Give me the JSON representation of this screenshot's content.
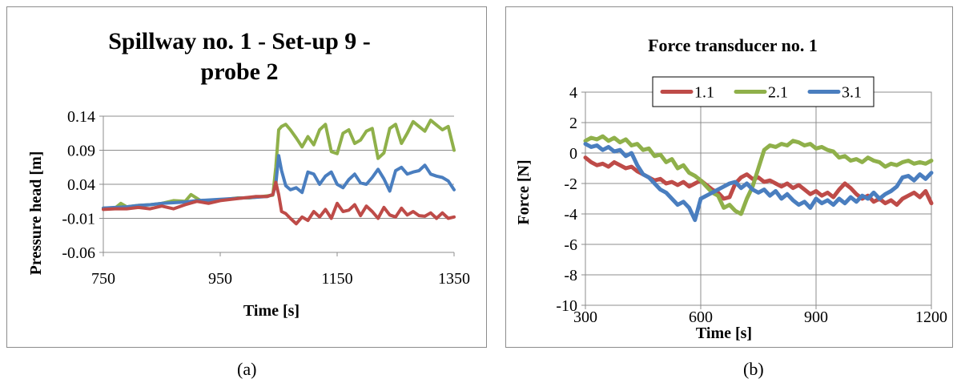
{
  "figure": {
    "caption_a": "(a)",
    "caption_b": "(b)"
  },
  "chart_data": [
    {
      "type": "line",
      "title_line1": "Spillway no. 1 - Set-up 9 -",
      "title_line2": "probe 2",
      "xlabel": "Time [s]",
      "ylabel": "Pressure head [m]",
      "xlim": [
        750,
        1350
      ],
      "ylim": [
        -0.06,
        0.14
      ],
      "xticks": [
        750,
        950,
        1150,
        1350
      ],
      "yticks": [
        -0.06,
        -0.01,
        0.04,
        0.09,
        0.14
      ],
      "ytick_labels": [
        "-0.06",
        "-0.01",
        "0.04",
        "0.09",
        "0.14"
      ],
      "xgrid": false,
      "ygrid": true,
      "series": [
        {
          "color": "#8fb04a",
          "x": [
            750,
            770,
            780,
            790,
            810,
            830,
            850,
            870,
            890,
            900,
            920,
            940,
            960,
            980,
            1000,
            1020,
            1040,
            1045,
            1050,
            1055,
            1062,
            1070,
            1080,
            1090,
            1100,
            1110,
            1120,
            1130,
            1140,
            1150,
            1160,
            1170,
            1180,
            1190,
            1200,
            1210,
            1220,
            1230,
            1240,
            1250,
            1260,
            1270,
            1280,
            1290,
            1300,
            1310,
            1320,
            1330,
            1340,
            1350
          ],
          "y": [
            0.005,
            0.005,
            0.012,
            0.007,
            0.009,
            0.01,
            0.012,
            0.016,
            0.015,
            0.025,
            0.014,
            0.017,
            0.018,
            0.02,
            0.02,
            0.022,
            0.024,
            0.065,
            0.12,
            0.125,
            0.128,
            0.12,
            0.108,
            0.095,
            0.11,
            0.098,
            0.12,
            0.128,
            0.088,
            0.085,
            0.115,
            0.12,
            0.1,
            0.105,
            0.118,
            0.122,
            0.078,
            0.086,
            0.122,
            0.128,
            0.1,
            0.115,
            0.132,
            0.125,
            0.118,
            0.134,
            0.127,
            0.12,
            0.125,
            0.09
          ]
        },
        {
          "color": "#4a7ebf",
          "x": [
            750,
            770,
            790,
            810,
            830,
            850,
            870,
            890,
            910,
            930,
            950,
            970,
            990,
            1010,
            1030,
            1040,
            1045,
            1050,
            1055,
            1062,
            1070,
            1080,
            1090,
            1100,
            1110,
            1120,
            1130,
            1140,
            1150,
            1160,
            1170,
            1180,
            1190,
            1200,
            1210,
            1220,
            1230,
            1240,
            1250,
            1260,
            1270,
            1280,
            1290,
            1300,
            1310,
            1320,
            1330,
            1340,
            1350
          ],
          "y": [
            0.005,
            0.006,
            0.007,
            0.009,
            0.01,
            0.012,
            0.013,
            0.014,
            0.016,
            0.017,
            0.018,
            0.019,
            0.02,
            0.021,
            0.022,
            0.025,
            0.04,
            0.082,
            0.06,
            0.038,
            0.032,
            0.035,
            0.028,
            0.058,
            0.055,
            0.04,
            0.052,
            0.058,
            0.04,
            0.035,
            0.047,
            0.055,
            0.042,
            0.04,
            0.05,
            0.062,
            0.048,
            0.03,
            0.06,
            0.065,
            0.055,
            0.058,
            0.06,
            0.068,
            0.055,
            0.052,
            0.05,
            0.045,
            0.032
          ]
        },
        {
          "color": "#be4b48",
          "x": [
            750,
            770,
            790,
            810,
            830,
            850,
            870,
            890,
            910,
            930,
            950,
            970,
            990,
            1010,
            1030,
            1040,
            1045,
            1050,
            1055,
            1062,
            1070,
            1080,
            1090,
            1100,
            1110,
            1120,
            1130,
            1140,
            1150,
            1160,
            1170,
            1180,
            1190,
            1200,
            1210,
            1220,
            1230,
            1240,
            1250,
            1260,
            1270,
            1280,
            1290,
            1300,
            1310,
            1320,
            1330,
            1340,
            1350
          ],
          "y": [
            0.003,
            0.004,
            0.004,
            0.006,
            0.004,
            0.008,
            0.004,
            0.01,
            0.015,
            0.012,
            0.016,
            0.018,
            0.02,
            0.022,
            0.022,
            0.025,
            0.043,
            0.025,
            0.0,
            -0.003,
            -0.01,
            -0.018,
            -0.008,
            -0.013,
            0.0,
            -0.008,
            0.003,
            -0.01,
            0.012,
            0.0,
            0.002,
            0.01,
            -0.006,
            0.008,
            0.0,
            -0.01,
            0.006,
            -0.005,
            -0.008,
            0.005,
            -0.005,
            0.0,
            -0.006,
            -0.007,
            -0.002,
            -0.01,
            -0.002,
            -0.01,
            -0.008
          ]
        }
      ]
    },
    {
      "type": "line",
      "title": "Force transducer no. 1",
      "xlabel": "Time [s]",
      "ylabel": "Force [N]",
      "xlim": [
        300,
        1200
      ],
      "ylim": [
        -10,
        4
      ],
      "xticks": [
        300,
        600,
        900,
        1200
      ],
      "yticks": [
        -10,
        -8,
        -6,
        -4,
        -2,
        0,
        2,
        4
      ],
      "xgrid": true,
      "ygrid": true,
      "legend_position": "top-right",
      "series": [
        {
          "name": "1.1",
          "color": "#be4b48",
          "x": [
            300,
            315,
            330,
            345,
            360,
            375,
            390,
            405,
            420,
            435,
            450,
            465,
            480,
            495,
            510,
            525,
            540,
            555,
            570,
            585,
            600,
            615,
            630,
            645,
            660,
            675,
            690,
            705,
            720,
            735,
            750,
            765,
            780,
            795,
            810,
            825,
            840,
            855,
            870,
            885,
            900,
            915,
            930,
            945,
            960,
            975,
            990,
            1005,
            1020,
            1035,
            1050,
            1065,
            1080,
            1095,
            1110,
            1125,
            1140,
            1155,
            1170,
            1185,
            1200
          ],
          "y": [
            -0.3,
            -0.6,
            -0.8,
            -0.7,
            -0.9,
            -0.6,
            -0.8,
            -1.0,
            -0.9,
            -1.2,
            -1.4,
            -1.6,
            -1.8,
            -1.7,
            -2.0,
            -1.9,
            -2.1,
            -1.9,
            -2.2,
            -2.0,
            -1.8,
            -2.1,
            -2.4,
            -2.6,
            -3.0,
            -2.9,
            -2.0,
            -1.6,
            -1.4,
            -1.7,
            -1.6,
            -1.9,
            -1.8,
            -2.0,
            -2.2,
            -2.0,
            -2.3,
            -2.1,
            -2.4,
            -2.7,
            -2.5,
            -2.8,
            -2.6,
            -2.9,
            -2.4,
            -2.0,
            -2.3,
            -2.7,
            -3.0,
            -2.8,
            -3.2,
            -3.0,
            -3.3,
            -3.1,
            -3.4,
            -3.0,
            -2.8,
            -2.6,
            -2.9,
            -2.5,
            -3.3
          ]
        },
        {
          "name": "2.1",
          "color": "#8fb04a",
          "x": [
            300,
            315,
            330,
            345,
            360,
            375,
            390,
            405,
            420,
            435,
            450,
            465,
            480,
            495,
            510,
            525,
            540,
            555,
            570,
            585,
            600,
            615,
            630,
            645,
            660,
            675,
            690,
            705,
            720,
            735,
            750,
            765,
            780,
            795,
            810,
            825,
            840,
            855,
            870,
            885,
            900,
            915,
            930,
            945,
            960,
            975,
            990,
            1005,
            1020,
            1035,
            1050,
            1065,
            1080,
            1095,
            1110,
            1125,
            1140,
            1155,
            1170,
            1185,
            1200
          ],
          "y": [
            0.8,
            1.0,
            0.9,
            1.1,
            0.8,
            1.0,
            0.7,
            0.9,
            0.5,
            0.6,
            0.2,
            0.3,
            -0.2,
            -0.1,
            -0.6,
            -0.4,
            -1.0,
            -0.8,
            -1.3,
            -1.5,
            -1.8,
            -2.2,
            -2.6,
            -2.8,
            -3.6,
            -3.4,
            -3.8,
            -4.0,
            -3.0,
            -2.2,
            -1.0,
            0.2,
            0.5,
            0.4,
            0.6,
            0.5,
            0.8,
            0.7,
            0.5,
            0.6,
            0.3,
            0.4,
            0.2,
            0.1,
            -0.3,
            -0.2,
            -0.5,
            -0.4,
            -0.6,
            -0.3,
            -0.5,
            -0.6,
            -0.9,
            -0.7,
            -0.8,
            -0.6,
            -0.5,
            -0.7,
            -0.6,
            -0.7,
            -0.5
          ]
        },
        {
          "name": "3.1",
          "color": "#4a7ebf",
          "x": [
            300,
            315,
            330,
            345,
            360,
            375,
            390,
            405,
            420,
            435,
            450,
            465,
            480,
            495,
            510,
            525,
            540,
            555,
            570,
            585,
            600,
            615,
            630,
            645,
            660,
            675,
            690,
            705,
            720,
            735,
            750,
            765,
            780,
            795,
            810,
            825,
            840,
            855,
            870,
            885,
            900,
            915,
            930,
            945,
            960,
            975,
            990,
            1005,
            1020,
            1035,
            1050,
            1065,
            1080,
            1095,
            1110,
            1125,
            1140,
            1155,
            1170,
            1185,
            1200
          ],
          "y": [
            0.6,
            0.4,
            0.5,
            0.2,
            0.4,
            0.1,
            0.2,
            -0.2,
            0.0,
            -0.8,
            -1.4,
            -1.6,
            -2.0,
            -2.4,
            -2.6,
            -3.0,
            -3.4,
            -3.2,
            -3.6,
            -4.4,
            -3.0,
            -2.8,
            -2.6,
            -2.4,
            -2.2,
            -2.0,
            -1.9,
            -2.3,
            -2.0,
            -2.4,
            -2.6,
            -2.4,
            -2.8,
            -2.5,
            -3.0,
            -2.7,
            -3.1,
            -3.4,
            -3.2,
            -3.6,
            -3.0,
            -3.3,
            -3.1,
            -3.4,
            -3.0,
            -3.3,
            -2.9,
            -3.2,
            -2.8,
            -3.0,
            -2.6,
            -3.0,
            -2.7,
            -2.5,
            -2.2,
            -1.6,
            -1.5,
            -1.8,
            -1.4,
            -1.7,
            -1.3
          ]
        }
      ]
    }
  ]
}
